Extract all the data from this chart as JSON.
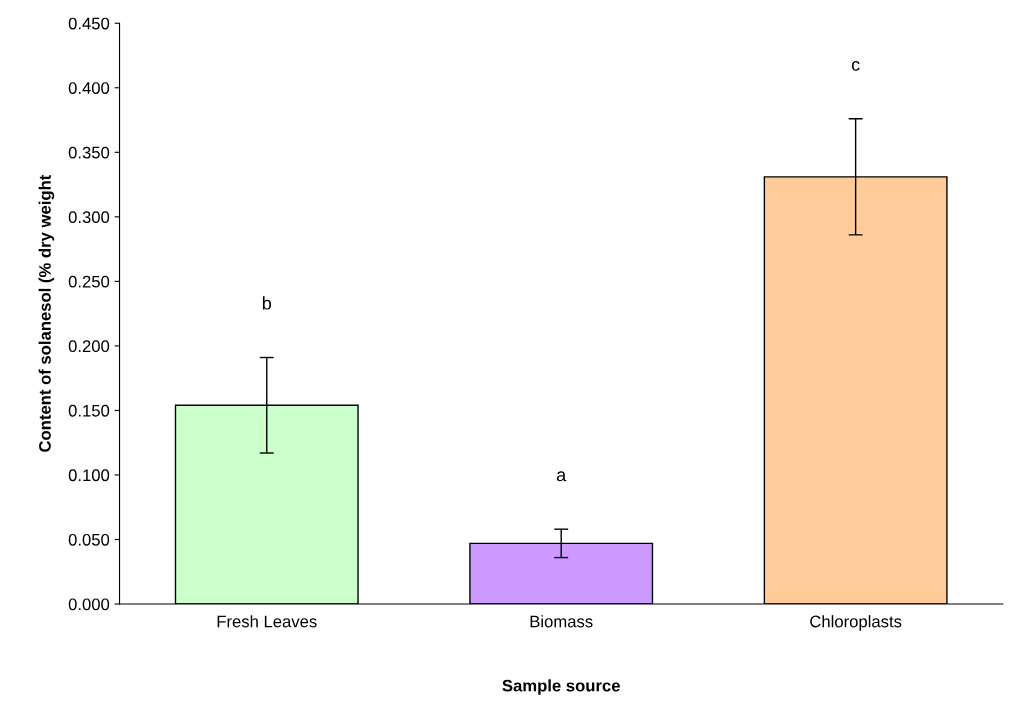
{
  "chart_data": {
    "type": "bar",
    "xlabel": "Sample source",
    "ylabel": "Content of solanesol (% dry weight",
    "categories": [
      "Fresh Leaves",
      "Biomass",
      "Chloroplasts"
    ],
    "values": [
      0.154,
      0.047,
      0.331
    ],
    "colors": [
      "#ccffcc",
      "#cc99ff",
      "#ffcc99"
    ],
    "errors": [
      0.037,
      0.011,
      0.045
    ],
    "ylim": [
      0,
      0.45
    ],
    "yticks": [
      {
        "value": 0,
        "label": "0.000"
      },
      {
        "value": 0.05,
        "label": "0.050"
      },
      {
        "value": 0.1,
        "label": "0.100"
      },
      {
        "value": 0.15,
        "label": "0.150"
      },
      {
        "value": 0.2,
        "label": "0.200"
      },
      {
        "value": 0.25,
        "label": "0.250"
      },
      {
        "value": 0.3,
        "label": "0.300"
      },
      {
        "value": 0.35,
        "label": "0.350"
      },
      {
        "value": 0.4,
        "label": "0.400"
      },
      {
        "value": 0.45,
        "label": "0.450"
      }
    ],
    "annotations": [
      "b",
      "a",
      "c"
    ],
    "grid": false,
    "legend": false
  }
}
